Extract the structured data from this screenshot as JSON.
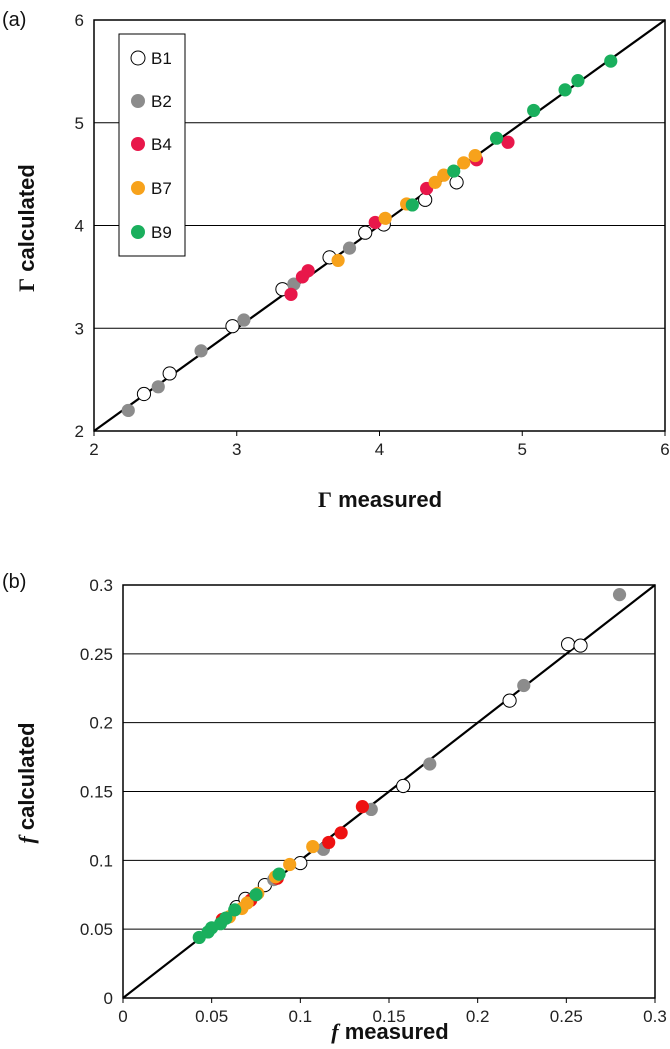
{
  "colors": {
    "B1": "#ffffff",
    "B2": "#8c8c8c",
    "B4": "#e8174a",
    "B4b": "#ee1111",
    "B7": "#f7a21b",
    "B9": "#1aaf5d"
  },
  "chart_data": [
    {
      "type": "scatter",
      "panel_label": "(a)",
      "xlabel": {
        "symbol": "Γ",
        "text": " measured"
      },
      "ylabel": {
        "symbol": "Γ",
        "text": " calculated"
      },
      "xlim": [
        2,
        6
      ],
      "ylim": [
        2,
        6
      ],
      "xticks": [
        "2",
        "3",
        "4",
        "5",
        "6"
      ],
      "yticks": [
        "2",
        "3",
        "4",
        "5",
        "6"
      ],
      "grid": "horizontal",
      "identity_line": true,
      "legend": {
        "placement": "top-left",
        "entries": [
          "B1",
          "B2",
          "B4",
          "B7",
          "B9"
        ]
      },
      "series": [
        {
          "name": "B1",
          "fill": "#ffffff",
          "points": [
            [
              2.35,
              2.36
            ],
            [
              2.53,
              2.56
            ],
            [
              2.97,
              3.02
            ],
            [
              3.32,
              3.38
            ],
            [
              3.65,
              3.69
            ],
            [
              3.9,
              3.93
            ],
            [
              4.03,
              4.01
            ],
            [
              4.32,
              4.25
            ],
            [
              4.54,
              4.42
            ]
          ]
        },
        {
          "name": "B2",
          "fill": "#8c8c8c",
          "points": [
            [
              2.24,
              2.2
            ],
            [
              2.45,
              2.43
            ],
            [
              2.75,
              2.78
            ],
            [
              3.05,
              3.08
            ],
            [
              3.4,
              3.43
            ],
            [
              3.79,
              3.78
            ]
          ]
        },
        {
          "name": "B4",
          "fill": "#e8174a",
          "points": [
            [
              3.38,
              3.33
            ],
            [
              3.46,
              3.5
            ],
            [
              3.5,
              3.56
            ],
            [
              3.97,
              4.03
            ],
            [
              4.33,
              4.36
            ],
            [
              4.68,
              4.64
            ],
            [
              4.9,
              4.81
            ]
          ]
        },
        {
          "name": "B7",
          "fill": "#f7a21b",
          "points": [
            [
              3.71,
              3.66
            ],
            [
              4.04,
              4.07
            ],
            [
              4.19,
              4.21
            ],
            [
              4.39,
              4.42
            ],
            [
              4.45,
              4.49
            ],
            [
              4.59,
              4.61
            ],
            [
              4.67,
              4.68
            ]
          ]
        },
        {
          "name": "B9",
          "fill": "#1aaf5d",
          "points": [
            [
              4.23,
              4.2
            ],
            [
              4.52,
              4.53
            ],
            [
              4.82,
              4.85
            ],
            [
              5.08,
              5.12
            ],
            [
              5.3,
              5.32
            ],
            [
              5.39,
              5.41
            ],
            [
              5.62,
              5.6
            ]
          ]
        }
      ]
    },
    {
      "type": "scatter",
      "panel_label": "(b)",
      "xlabel": {
        "symbol": "f",
        "text": " measured"
      },
      "ylabel": {
        "symbol": "f",
        "text": " calculated"
      },
      "xlim": [
        0,
        0.3
      ],
      "ylim": [
        0,
        0.3
      ],
      "xticks": [
        "0",
        "0.05",
        "0.1",
        "0.15",
        "0.2",
        "0.25",
        "0.3"
      ],
      "yticks": [
        "0",
        "0.05",
        "0.1",
        "0.15",
        "0.2",
        "0.25",
        "0.3"
      ],
      "grid": "horizontal",
      "identity_line": true,
      "series": [
        {
          "name": "B1",
          "fill": "#ffffff",
          "points": [
            [
              0.064,
              0.066
            ],
            [
              0.069,
              0.072
            ],
            [
              0.08,
              0.082
            ],
            [
              0.1,
              0.098
            ],
            [
              0.158,
              0.154
            ],
            [
              0.218,
              0.216
            ],
            [
              0.251,
              0.257
            ],
            [
              0.258,
              0.256
            ]
          ]
        },
        {
          "name": "B2",
          "fill": "#8c8c8c",
          "points": [
            [
              0.085,
              0.086
            ],
            [
              0.113,
              0.108
            ],
            [
              0.14,
              0.137
            ],
            [
              0.173,
              0.17
            ],
            [
              0.226,
              0.227
            ],
            [
              0.28,
              0.293
            ]
          ]
        },
        {
          "name": "B4",
          "fill": "#ee1111",
          "points": [
            [
              0.056,
              0.057
            ],
            [
              0.072,
              0.071
            ],
            [
              0.087,
              0.087
            ],
            [
              0.116,
              0.113
            ],
            [
              0.123,
              0.12
            ],
            [
              0.135,
              0.139
            ]
          ]
        },
        {
          "name": "B7",
          "fill": "#f7a21b",
          "points": [
            [
              0.06,
              0.059
            ],
            [
              0.067,
              0.065
            ],
            [
              0.07,
              0.069
            ],
            [
              0.076,
              0.076
            ],
            [
              0.086,
              0.088
            ],
            [
              0.094,
              0.097
            ],
            [
              0.107,
              0.11
            ]
          ]
        },
        {
          "name": "B9",
          "fill": "#1aaf5d",
          "points": [
            [
              0.043,
              0.044
            ],
            [
              0.048,
              0.048
            ],
            [
              0.05,
              0.051
            ],
            [
              0.055,
              0.054
            ],
            [
              0.058,
              0.058
            ],
            [
              0.063,
              0.064
            ],
            [
              0.075,
              0.075
            ],
            [
              0.088,
              0.09
            ]
          ]
        }
      ]
    }
  ]
}
